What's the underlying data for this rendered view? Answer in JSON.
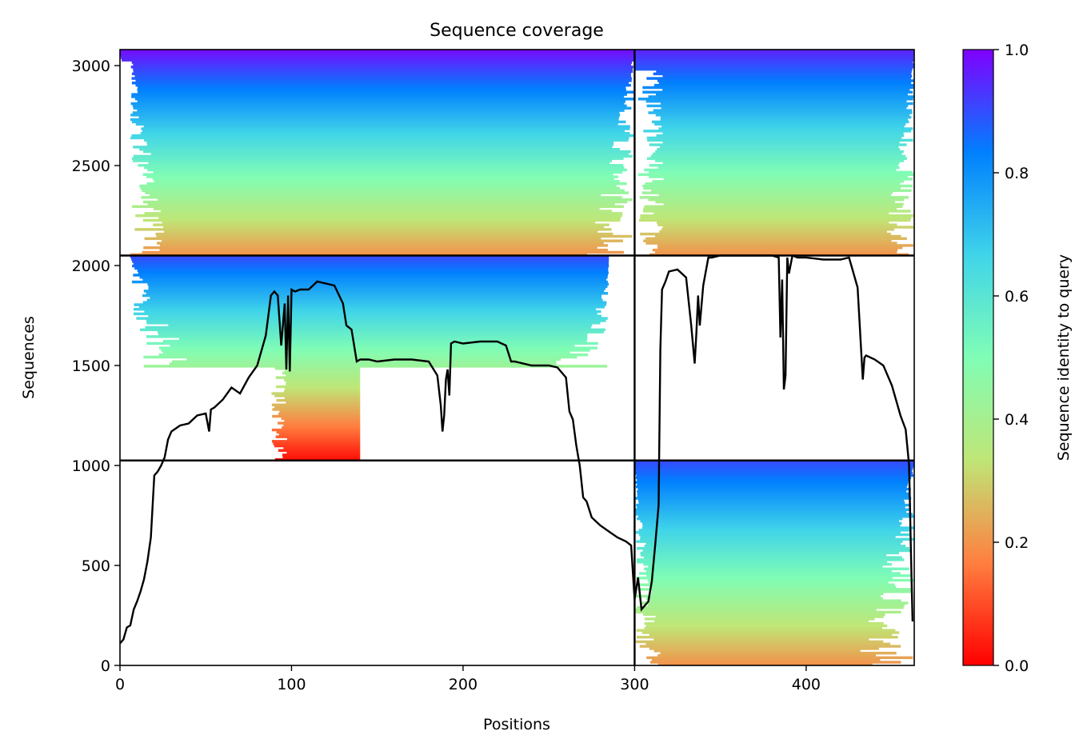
{
  "chart_data": {
    "type": "heatmap",
    "title": "Sequence coverage",
    "xlabel": "Positions",
    "ylabel": "Sequences",
    "xlim": [
      0,
      463
    ],
    "ylim": [
      0,
      3080
    ],
    "x_ticks": [
      0,
      100,
      200,
      300,
      400
    ],
    "y_ticks": [
      0,
      500,
      1000,
      1500,
      2000,
      2500,
      3000
    ],
    "grid": false,
    "colorbar": {
      "label": "Sequence identity to query",
      "range": [
        0,
        1
      ],
      "ticks": [
        "0.0",
        "0.2",
        "0.4",
        "0.6",
        "0.8",
        "1.0"
      ],
      "colormap": "rainbow_r",
      "colors": [
        "#ff0000",
        "#ff7f40",
        "#bfe677",
        "#80fdb5",
        "#40d4e9",
        "#0080fe",
        "#8000ff"
      ]
    },
    "separators": {
      "vertical_at_position": 300,
      "horizontal_at_sequences": [
        1025,
        2050
      ]
    },
    "blocks": [
      {
        "name": "upper-left",
        "x_range": [
          0,
          300
        ],
        "y_range": [
          2050,
          3080
        ],
        "identity_top": 0.98,
        "identity_bottom": 0.2,
        "coverage_note": "dense"
      },
      {
        "name": "upper-right",
        "x_range": [
          300,
          463
        ],
        "y_range": [
          2050,
          3080
        ],
        "identity_top": 0.95,
        "identity_bottom": 0.2
      },
      {
        "name": "middle-left",
        "x_range": [
          0,
          300
        ],
        "y_range": [
          1025,
          2050
        ],
        "identity_top": 0.9,
        "identity_bottom": 0.02
      },
      {
        "name": "lower-right",
        "x_range": [
          300,
          463
        ],
        "y_range": [
          0,
          1025
        ],
        "identity_top": 0.9,
        "identity_bottom": 0.2
      }
    ],
    "coverage_line": {
      "color": "#000000",
      "x": [
        0,
        2,
        4,
        6,
        8,
        10,
        12,
        14,
        16,
        18,
        20,
        22,
        24,
        26,
        28,
        30,
        35,
        40,
        45,
        50,
        52,
        53,
        55,
        60,
        65,
        70,
        75,
        80,
        85,
        88,
        90,
        92,
        94,
        96,
        97,
        98,
        99,
        100,
        102,
        105,
        110,
        115,
        120,
        125,
        130,
        132,
        135,
        138,
        140,
        145,
        150,
        160,
        170,
        180,
        185,
        187,
        188,
        189,
        190,
        191,
        192,
        193,
        195,
        200,
        210,
        220,
        225,
        228,
        230,
        240,
        250,
        255,
        260,
        262,
        264,
        266,
        268,
        270,
        272,
        275,
        280,
        285,
        290,
        295,
        298,
        300,
        302,
        304,
        306,
        308,
        310,
        312,
        314,
        315,
        316,
        318,
        320,
        325,
        330,
        333,
        335,
        336,
        337,
        338,
        340,
        343,
        345,
        350,
        360,
        370,
        380,
        384,
        385,
        386,
        387,
        388,
        389,
        390,
        392,
        395,
        400,
        410,
        420,
        425,
        430,
        433,
        434,
        435,
        440,
        445,
        450,
        455,
        458,
        460,
        461,
        462
      ],
      "y": [
        110,
        130,
        190,
        200,
        280,
        320,
        370,
        430,
        520,
        640,
        950,
        970,
        1000,
        1040,
        1130,
        1170,
        1200,
        1210,
        1250,
        1260,
        1170,
        1280,
        1290,
        1330,
        1390,
        1360,
        1440,
        1500,
        1650,
        1850,
        1870,
        1850,
        1600,
        1810,
        1480,
        1850,
        1470,
        1880,
        1870,
        1880,
        1880,
        1920,
        1910,
        1900,
        1810,
        1700,
        1680,
        1520,
        1530,
        1530,
        1520,
        1530,
        1530,
        1520,
        1450,
        1300,
        1170,
        1250,
        1430,
        1480,
        1350,
        1610,
        1620,
        1610,
        1620,
        1620,
        1600,
        1520,
        1520,
        1500,
        1500,
        1490,
        1440,
        1270,
        1230,
        1100,
        1000,
        840,
        820,
        740,
        700,
        670,
        640,
        620,
        600,
        330,
        440,
        280,
        300,
        320,
        420,
        600,
        800,
        1580,
        1880,
        1920,
        1970,
        1980,
        1940,
        1700,
        1510,
        1660,
        1850,
        1700,
        1900,
        2040,
        2040,
        2050,
        2050,
        2050,
        2050,
        2040,
        1640,
        1930,
        1380,
        1450,
        2040,
        1960,
        2050,
        2040,
        2040,
        2030,
        2030,
        2040,
        1890,
        1430,
        1540,
        1550,
        1530,
        1500,
        1400,
        1250,
        1180,
        1000,
        600,
        220
      ]
    }
  }
}
